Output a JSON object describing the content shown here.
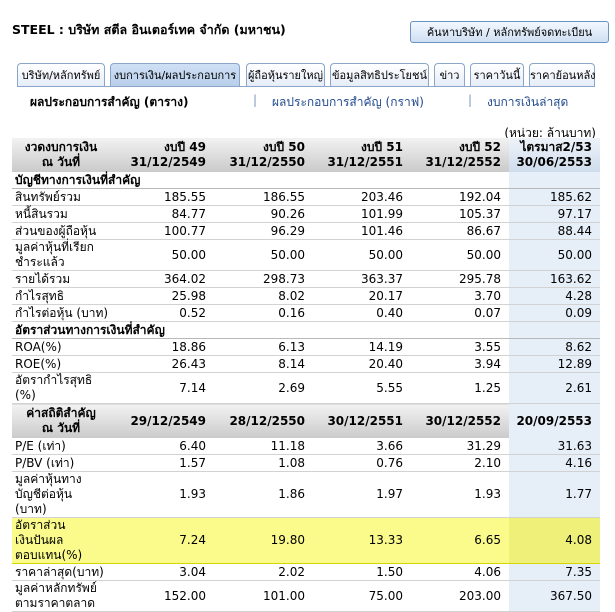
{
  "header": {
    "title": "STEEL : บริษัท สตีล อินเตอร์เทค จำกัด (มหาชน)",
    "search_button": "ค้นหาบริษัท / หลักทรัพย์จดทะเบียน"
  },
  "tabs": [
    {
      "label": "บริษัท/หลักทรัพย์",
      "active": false
    },
    {
      "label": "งบการเงิน/ผลประกอบการ",
      "active": true
    },
    {
      "label": "ผู้ถือหุ้นรายใหญ่",
      "active": false
    },
    {
      "label": "ข้อมูลสิทธิประโยชน์",
      "active": false
    },
    {
      "label": "ข่าว",
      "active": false
    },
    {
      "label": "ราคาวันนี้",
      "active": false
    },
    {
      "label": "ราคาย้อนหลัง",
      "active": false
    }
  ],
  "subnav": {
    "current": "ผลประกอบการสำคัญ (ตาราง)",
    "link1": "ผลประกอบการสำคัญ (กราฟ)",
    "link2": "งบการเงินล่าสุด",
    "separator": "|"
  },
  "unit_note": "(หน่วย: ล้านบาท)",
  "table": {
    "header": {
      "label_line1": "งวดงบการเงิน",
      "label_line2": "ณ วันที่",
      "columns": [
        {
          "line1": "งบปี 49",
          "line2": "31/12/2549"
        },
        {
          "line1": "งบปี 50",
          "line2": "31/12/2550"
        },
        {
          "line1": "งบปี 51",
          "line2": "31/12/2551"
        },
        {
          "line1": "งบปี 52",
          "line2": "31/12/2552"
        },
        {
          "line1": "ไตรมาส2/53",
          "line2": "30/06/2553"
        }
      ]
    },
    "section1": "บัญชีทางการเงินที่สำคัญ",
    "rows1": [
      {
        "label": "สินทรัพย์รวม",
        "values": [
          "185.55",
          "186.55",
          "203.46",
          "192.04",
          "185.62"
        ]
      },
      {
        "label": "หนี้สินรวม",
        "values": [
          "84.77",
          "90.26",
          "101.99",
          "105.37",
          "97.17"
        ]
      },
      {
        "label": "ส่วนของผู้ถือหุ้น",
        "values": [
          "100.77",
          "96.29",
          "101.46",
          "86.67",
          "88.44"
        ]
      },
      {
        "label": "มูลค่าหุ้นที่เรียกชำระแล้ว",
        "values": [
          "50.00",
          "50.00",
          "50.00",
          "50.00",
          "50.00"
        ]
      },
      {
        "label": "รายได้รวม",
        "values": [
          "364.02",
          "298.73",
          "363.37",
          "295.78",
          "163.62"
        ]
      },
      {
        "label": "กำไรสุทธิ",
        "values": [
          "25.98",
          "8.02",
          "20.17",
          "3.70",
          "4.28"
        ]
      },
      {
        "label": "กำไรต่อหุ้น (บาท)",
        "values": [
          "0.52",
          "0.16",
          "0.40",
          "0.07",
          "0.09"
        ]
      }
    ],
    "section2": "อัตราส่วนทางการเงินที่สำคัญ",
    "rows2": [
      {
        "label": "ROA(%)",
        "values": [
          "18.86",
          "6.13",
          "14.19",
          "3.55",
          "8.62"
        ]
      },
      {
        "label": "ROE(%)",
        "values": [
          "26.43",
          "8.14",
          "20.40",
          "3.94",
          "12.89"
        ]
      },
      {
        "label": "อัตรากำไรสุทธิ (%)",
        "values": [
          "7.14",
          "2.69",
          "5.55",
          "1.25",
          "2.61"
        ]
      }
    ],
    "header2": {
      "label_line1": "ค่าสถิติสำคัญ",
      "label_line2": "ณ วันที่",
      "dates": [
        "29/12/2549",
        "28/12/2550",
        "30/12/2551",
        "30/12/2552",
        "20/09/2553"
      ]
    },
    "rows3": [
      {
        "label": "P/E (เท่า)",
        "values": [
          "6.40",
          "11.18",
          "3.66",
          "31.29",
          "31.63"
        ]
      },
      {
        "label": "P/BV (เท่า)",
        "values": [
          "1.57",
          "1.08",
          "0.76",
          "2.10",
          "4.16"
        ]
      },
      {
        "label": "มูลค่าหุ้นทางบัญชีต่อหุ้น (บาท)",
        "values": [
          "1.93",
          "1.86",
          "1.97",
          "1.93",
          "1.77"
        ]
      },
      {
        "label": "อัตราส่วนเงินปันผลตอบแทน(%)",
        "values": [
          "7.24",
          "19.80",
          "13.33",
          "6.65",
          "4.08"
        ]
      },
      {
        "label": "ราคาล่าสุด(บาท)",
        "values": [
          "3.04",
          "2.02",
          "1.50",
          "4.06",
          "7.35"
        ]
      },
      {
        "label": "มูลค่าหลักทรัพย์ตามราคาตลาด",
        "values": [
          "152.00",
          "101.00",
          "75.00",
          "203.00",
          "367.50"
        ]
      }
    ]
  },
  "colors": {
    "highlight": "#fbfb8c",
    "last_column": "#e6eef8",
    "tab_border": "#8aa6c9",
    "link": "#234a8f"
  }
}
